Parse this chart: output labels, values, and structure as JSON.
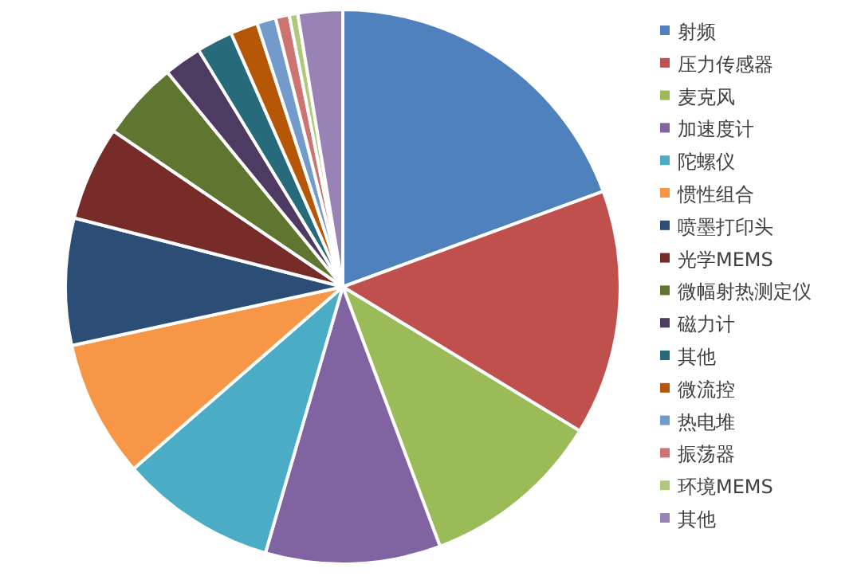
{
  "chart_data": {
    "type": "pie",
    "categories": [
      "射频",
      "压力传感器",
      "麦克风",
      "加速度计",
      "陀螺仪",
      "惯性组合",
      "喷墨打印头",
      "光学MEMS",
      "微幅射热测定仪",
      "磁力计",
      "其他",
      "微流控",
      "热电堆",
      "振荡器",
      "环境MEMS",
      "其他"
    ],
    "values": [
      19.4,
      14.3,
      10.6,
      10.2,
      9.1,
      8.0,
      7.4,
      5.5,
      4.6,
      2.2,
      2.1,
      1.6,
      1.1,
      0.8,
      0.5,
      2.6
    ],
    "colors": [
      "#4f81bd",
      "#c0504d",
      "#9bbb59",
      "#8064a2",
      "#4bacc6",
      "#f79646",
      "#2c4d75",
      "#772c2a",
      "#5f7530",
      "#4d3b62",
      "#276a7c",
      "#b65708",
      "#729aca",
      "#cd7371",
      "#afc97a",
      "#9983b5"
    ],
    "legend": "right"
  }
}
